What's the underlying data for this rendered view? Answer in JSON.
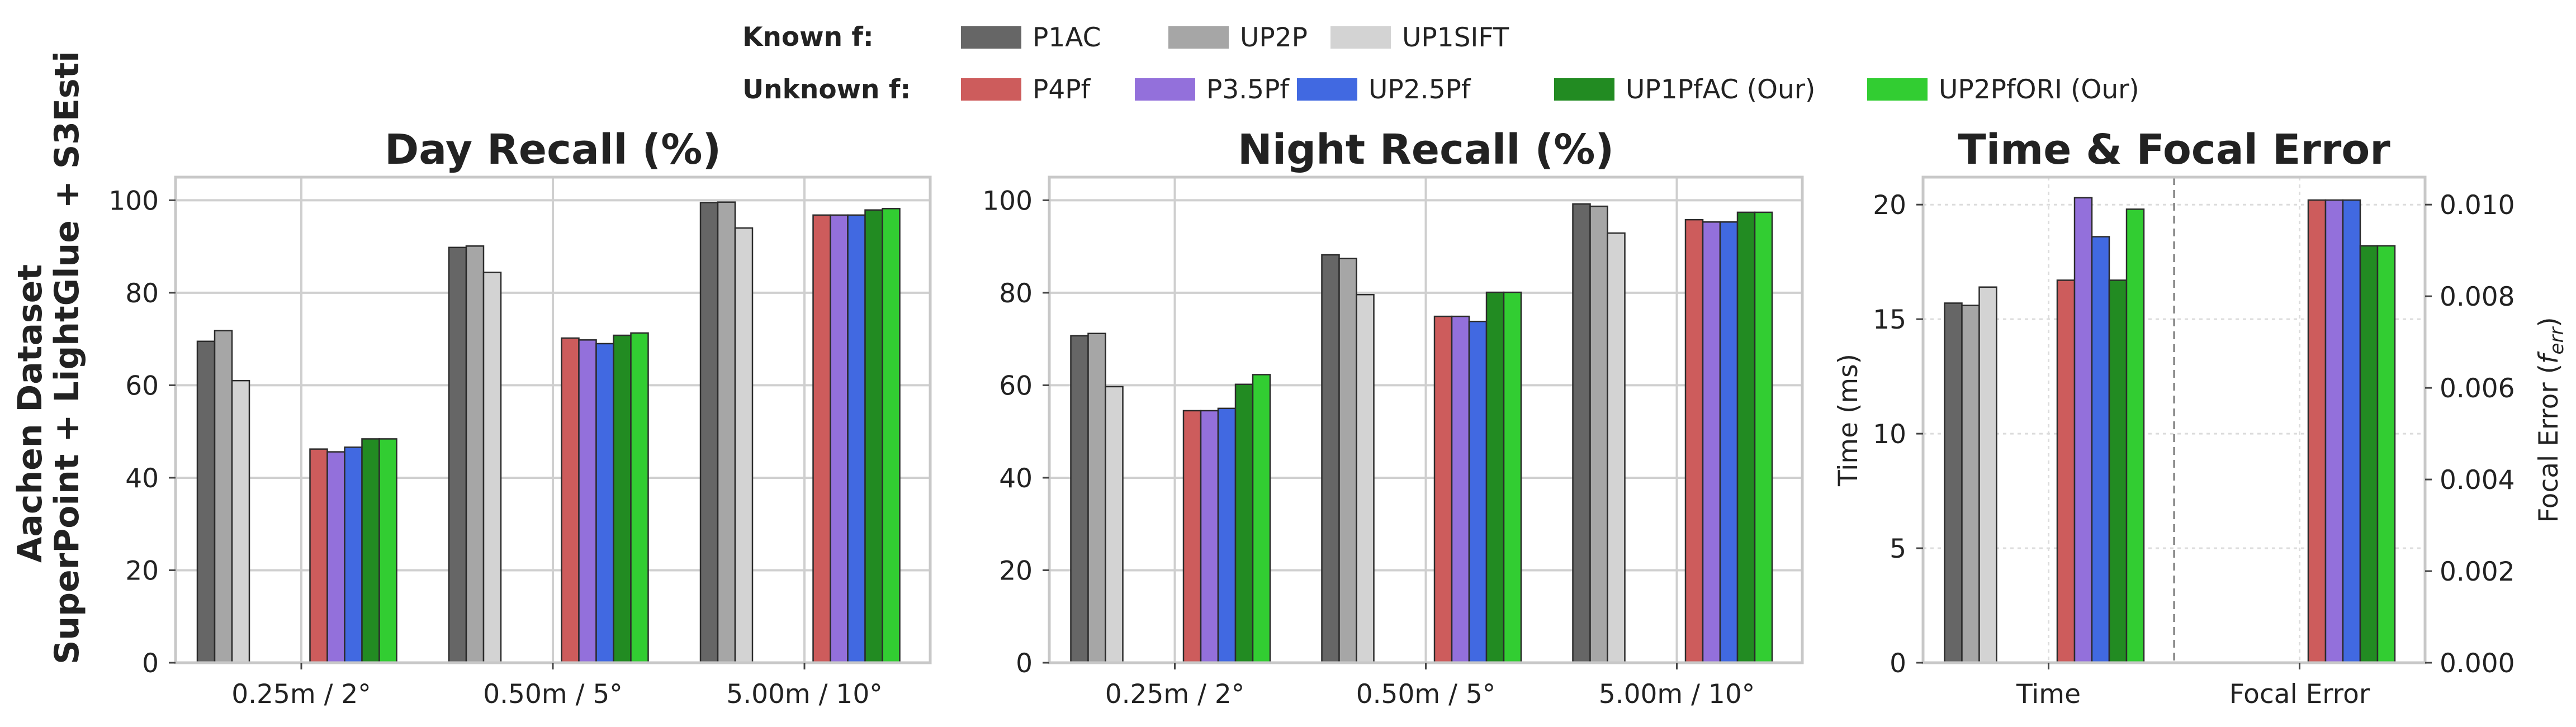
{
  "legend": {
    "known_label": "Known f:",
    "unknown_label": "Unknown f:",
    "known": [
      {
        "name": "P1AC",
        "color": "#666666"
      },
      {
        "name": "UP2P",
        "color": "#a6a6a6"
      },
      {
        "name": "UP1SIFT",
        "color": "#d3d3d3"
      }
    ],
    "unknown": [
      {
        "name": "P4Pf",
        "color": "#cd5c5c"
      },
      {
        "name": "P3.5Pf",
        "color": "#9370db"
      },
      {
        "name": "UP2.5Pf",
        "color": "#4169e1"
      },
      {
        "name": "UP1PfAC (Our)",
        "color": "#228b22"
      },
      {
        "name": "UP2PfORI (Our)",
        "color": "#32cd32"
      }
    ]
  },
  "row_label": {
    "line1": "Aachen Dataset",
    "line2": "SuperPoint + LightGlue + S3Esti"
  },
  "chart_data": [
    {
      "type": "bar",
      "title": "Day Recall (%)",
      "categories": [
        "0.25m / 2°",
        "0.50m / 5°",
        "5.00m / 10°"
      ],
      "ylim": [
        0,
        105
      ],
      "yticks": [
        0,
        20,
        40,
        60,
        80,
        100
      ],
      "grid": true,
      "series": [
        {
          "name": "P1AC",
          "values": [
            69.5,
            89.8,
            99.5
          ]
        },
        {
          "name": "UP2P",
          "values": [
            71.8,
            90.1,
            99.6
          ]
        },
        {
          "name": "UP1SIFT",
          "values": [
            61.0,
            84.4,
            94.0
          ]
        },
        {
          "name": "P4Pf",
          "values": [
            46.2,
            70.2,
            96.8
          ]
        },
        {
          "name": "P3.5Pf",
          "values": [
            45.6,
            69.8,
            96.8
          ]
        },
        {
          "name": "UP2.5Pf",
          "values": [
            46.6,
            69.0,
            96.8
          ]
        },
        {
          "name": "UP1PfAC (Our)",
          "values": [
            48.4,
            70.8,
            97.9
          ]
        },
        {
          "name": "UP2PfORI (Our)",
          "values": [
            48.4,
            71.3,
            98.2
          ]
        }
      ]
    },
    {
      "type": "bar",
      "title": "Night Recall (%)",
      "categories": [
        "0.25m / 2°",
        "0.50m / 5°",
        "5.00m / 10°"
      ],
      "ylim": [
        0,
        105
      ],
      "yticks": [
        0,
        20,
        40,
        60,
        80,
        100
      ],
      "grid": true,
      "series": [
        {
          "name": "P1AC",
          "values": [
            70.7,
            88.2,
            99.2
          ]
        },
        {
          "name": "UP2P",
          "values": [
            71.2,
            87.4,
            98.7
          ]
        },
        {
          "name": "UP1SIFT",
          "values": [
            59.7,
            79.6,
            92.9
          ]
        },
        {
          "name": "P4Pf",
          "values": [
            54.5,
            74.9,
            95.8
          ]
        },
        {
          "name": "P3.5Pf",
          "values": [
            54.5,
            74.9,
            95.3
          ]
        },
        {
          "name": "UP2.5Pf",
          "values": [
            55.0,
            73.8,
            95.3
          ]
        },
        {
          "name": "UP1PfAC (Our)",
          "values": [
            60.2,
            80.1,
            97.4
          ]
        },
        {
          "name": "UP2PfORI (Our)",
          "values": [
            62.3,
            80.1,
            97.4
          ]
        }
      ]
    },
    {
      "type": "bar",
      "title": "Time & Focal Error",
      "categories": [
        "Time",
        "Focal Error"
      ],
      "ylabel": "Time (ms)",
      "ylim": [
        0,
        21.2
      ],
      "yticks": [
        0,
        5,
        10,
        15,
        20
      ],
      "ylabel_right": "Focal Error (f_err)",
      "ylim_right": [
        0,
        0.0106
      ],
      "yticks_right": [
        "0.000",
        "0.002",
        "0.004",
        "0.006",
        "0.008",
        "0.010"
      ],
      "grid": "dotted",
      "series": [
        {
          "name": "P1AC",
          "values": [
            15.7,
            null
          ]
        },
        {
          "name": "UP2P",
          "values": [
            15.6,
            null
          ]
        },
        {
          "name": "UP1SIFT",
          "values": [
            16.4,
            null
          ]
        },
        {
          "name": "P4Pf",
          "values": [
            16.7,
            0.0101
          ]
        },
        {
          "name": "P3.5Pf",
          "values": [
            20.3,
            0.0101
          ]
        },
        {
          "name": "UP2.5Pf",
          "values": [
            18.6,
            0.0101
          ]
        },
        {
          "name": "UP1PfAC (Our)",
          "values": [
            16.7,
            0.0091
          ]
        },
        {
          "name": "UP2PfORI (Our)",
          "values": [
            19.8,
            0.0091
          ]
        }
      ]
    }
  ]
}
